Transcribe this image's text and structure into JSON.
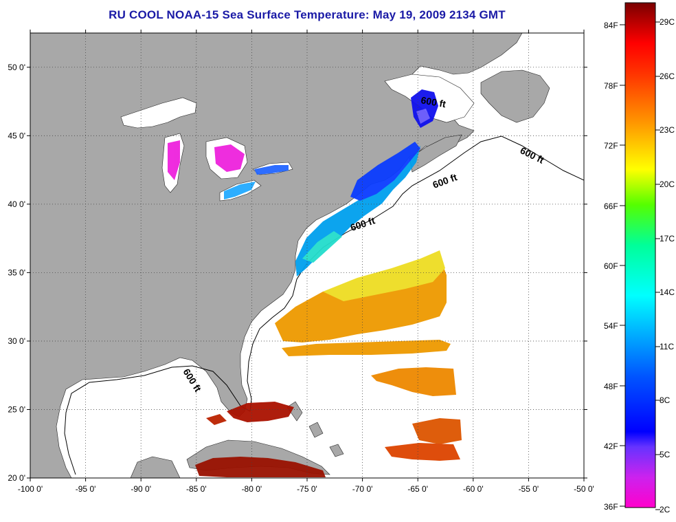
{
  "title": "RU COOL  NOAA-15  Sea Surface Temperature:  May 19, 2009 2134 GMT",
  "map": {
    "lon_range": [
      -100,
      -50
    ],
    "lat_range": [
      20,
      52.5
    ],
    "lon_ticks": [
      {
        "value": -100,
        "label": "-100 0'"
      },
      {
        "value": -95,
        "label": "-95 0'"
      },
      {
        "value": -90,
        "label": "-90 0'"
      },
      {
        "value": -85,
        "label": "-85 0'"
      },
      {
        "value": -80,
        "label": "-80 0'"
      },
      {
        "value": -75,
        "label": "-75 0'"
      },
      {
        "value": -70,
        "label": "-70 0'"
      },
      {
        "value": -65,
        "label": "-65 0'"
      },
      {
        "value": -60,
        "label": "-60 0'"
      },
      {
        "value": -55,
        "label": "-55 0'"
      },
      {
        "value": -50,
        "label": "-50 0'"
      }
    ],
    "lat_ticks": [
      {
        "value": 20,
        "label": "20 0'"
      },
      {
        "value": 25,
        "label": "25 0'"
      },
      {
        "value": 30,
        "label": "30 0'"
      },
      {
        "value": 35,
        "label": "35 0'"
      },
      {
        "value": 40,
        "label": "40 0'"
      },
      {
        "value": 45,
        "label": "45 0'"
      },
      {
        "value": 50,
        "label": "50 0'"
      }
    ],
    "grid": "dotted",
    "land_color": "#a8a8a8",
    "water_color": "#ffffff",
    "isobath_labels": [
      "600 ft",
      "600 ft",
      "600 ft",
      "600 ft",
      "600 ft"
    ]
  },
  "colorbar": {
    "fahrenheit_labels": [
      "84F",
      "78F",
      "72F",
      "66F",
      "60F",
      "54F",
      "48F",
      "42F",
      "36F"
    ],
    "celsius_labels": [
      "29C",
      "26C",
      "23C",
      "20C",
      "17C",
      "14C",
      "11C",
      "8C",
      "5C",
      "2C"
    ],
    "colors": [
      "#ff00cc",
      "#9933ff",
      "#0000ff",
      "#00aaff",
      "#00ffff",
      "#00ff88",
      "#ffff00",
      "#ff9900",
      "#ff0000",
      "#880000"
    ]
  }
}
